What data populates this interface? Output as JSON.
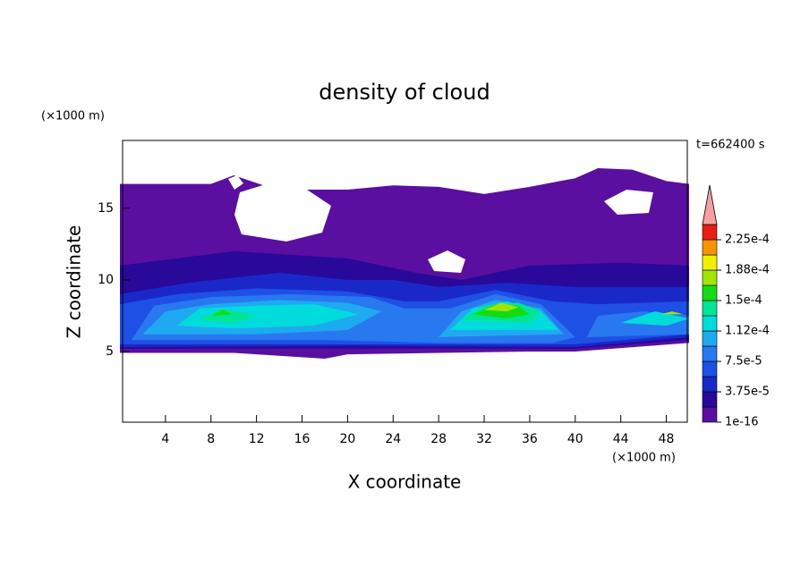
{
  "chart_data": {
    "type": "contour",
    "title": "density of cloud",
    "xlabel": "X coordinate",
    "ylabel": "Z coordinate",
    "xunit": "(×1000 m)",
    "yunit": "(×1000 m)",
    "annotation": "t=662400 s",
    "xlim": [
      0,
      50
    ],
    "xticks": [
      4,
      8,
      12,
      16,
      20,
      24,
      28,
      32,
      36,
      40,
      44,
      48
    ],
    "ylim": [
      0,
      19.8
    ],
    "yticks": [
      5,
      10,
      15
    ],
    "colorbar": {
      "levels": [
        1e-16,
        1.875e-05,
        3.75e-05,
        5.625e-05,
        7.5e-05,
        9.375e-05,
        0.0001125,
        0.00013125,
        0.00015,
        0.00016875,
        0.0001875,
        0.00020625,
        0.000225,
        0.00024375
      ],
      "colors": [
        "#5a0fa0",
        "#28099a",
        "#1a28c8",
        "#1e50e6",
        "#2878f0",
        "#1eaaf0",
        "#00dcdc",
        "#00e696",
        "#14dc14",
        "#a0e600",
        "#f0f000",
        "#f59600",
        "#e61e14"
      ],
      "over_color": "#f5a0a0",
      "ticks": [
        1e-16,
        {
          "value": 3.75e-05,
          "label": "3.75e-5"
        },
        {
          "value": 7.5e-05,
          "label": "7.5e-5"
        },
        {
          "value": 0.0001125,
          "label": "1.12e-4"
        },
        {
          "value": 0.00015,
          "label": "1.5e-4"
        },
        {
          "value": 0.0001875,
          "label": "1.88e-4"
        },
        {
          "value": 0.000225,
          "label": "2.25e-4"
        }
      ]
    },
    "regions": [
      {
        "level": 1e-16,
        "x": [
          0,
          0,
          8,
          10,
          13,
          16,
          20,
          24,
          28,
          32,
          36,
          38,
          40,
          42,
          45,
          48,
          50,
          50,
          40,
          36,
          20,
          18,
          10
        ],
        "z": [
          4.9,
          16.7,
          16.7,
          17.3,
          16.5,
          16.3,
          16.3,
          16.6,
          16.5,
          16.0,
          16.5,
          16.8,
          17.1,
          17.8,
          17.7,
          16.9,
          16.7,
          5.6,
          5.0,
          5.0,
          4.8,
          4.5,
          4.9
        ]
      },
      {
        "level": 1.875e-05,
        "x": [
          0,
          0,
          10,
          20,
          26,
          30,
          36,
          44,
          50,
          50,
          40,
          20
        ],
        "z": [
          5.2,
          11,
          12,
          11.5,
          10.5,
          10,
          11,
          11.2,
          11,
          5.8,
          5.2,
          5.2
        ]
      },
      {
        "level": 3.75e-05,
        "x": [
          0,
          0,
          6,
          14,
          20,
          24,
          28,
          34,
          40,
          46,
          50,
          50,
          40,
          20
        ],
        "z": [
          5.3,
          9,
          9.8,
          10.5,
          10,
          10,
          9.5,
          9.8,
          9.5,
          9.5,
          9.5,
          6,
          5.3,
          5.4
        ]
      },
      {
        "level": 5.625e-05,
        "x": [
          0,
          0,
          5,
          12,
          20,
          25,
          28,
          33,
          38,
          42,
          50,
          50,
          40,
          30
        ],
        "z": [
          5.5,
          8.3,
          9,
          9.4,
          9.2,
          8.5,
          8.5,
          9.3,
          8.5,
          8.3,
          8.5,
          6.2,
          5.5,
          5.5
        ]
      },
      {
        "level": 7.5e-05,
        "x": [
          1,
          3,
          8,
          15,
          22,
          25,
          29,
          33,
          37,
          40,
          38,
          28,
          18,
          10
        ],
        "z": [
          5.8,
          8.2,
          8.8,
          9,
          8.8,
          8,
          8,
          9.0,
          8.3,
          6,
          5.6,
          5.6,
          5.8,
          5.8
        ]
      },
      {
        "level": 7.5e-05,
        "x": [
          41,
          42,
          46,
          50,
          50
        ],
        "z": [
          6,
          7.5,
          7.8,
          7.5,
          6.2
        ]
      },
      {
        "level": 9.375e-05,
        "x": [
          2,
          4,
          8,
          14,
          20,
          23,
          20,
          12
        ],
        "z": [
          6.2,
          7.8,
          8.3,
          8.6,
          8.4,
          7.8,
          6.5,
          6.2
        ]
      },
      {
        "level": 9.375e-05,
        "x": [
          28,
          30,
          33,
          37,
          39
        ],
        "z": [
          6,
          7.8,
          8.6,
          8.0,
          6.2
        ]
      },
      {
        "level": 0.0001125,
        "x": [
          5,
          7,
          12,
          17,
          21,
          17,
          10
        ],
        "z": [
          6.8,
          8,
          8.2,
          8.3,
          7.6,
          6.8,
          6.6
        ]
      },
      {
        "level": 0.0001125,
        "x": [
          29,
          31,
          34,
          37,
          38.5
        ],
        "z": [
          6.5,
          8,
          8.5,
          7.8,
          6.5
        ]
      },
      {
        "level": 0.0001125,
        "x": [
          44,
          47,
          50,
          48
        ],
        "z": [
          7,
          7.8,
          7.3,
          6.8
        ]
      },
      {
        "level": 0.00013125,
        "x": [
          7,
          9,
          12,
          10
        ],
        "z": [
          7.2,
          8.0,
          7.5,
          7.0
        ]
      },
      {
        "level": 0.00013125,
        "x": [
          30,
          32,
          35,
          37,
          36
        ],
        "z": [
          7.2,
          8.2,
          8.4,
          7.8,
          7.0
        ]
      },
      {
        "level": 0.00015,
        "x": [
          31,
          33,
          35,
          36,
          34
        ],
        "z": [
          7.6,
          8.3,
          8.2,
          7.6,
          7.3
        ]
      },
      {
        "level": 0.00015,
        "x": [
          8,
          9,
          10
        ],
        "z": [
          7.5,
          7.9,
          7.6
        ]
      },
      {
        "level": 0.00016875,
        "x": [
          32,
          33.5,
          35,
          34
        ],
        "z": [
          7.9,
          8.4,
          8.1,
          7.8
        ]
      },
      {
        "level": 0.00016875,
        "x": [
          47.5,
          48.5,
          49.5
        ],
        "z": [
          7.6,
          7.8,
          7.6
        ]
      }
    ]
  }
}
